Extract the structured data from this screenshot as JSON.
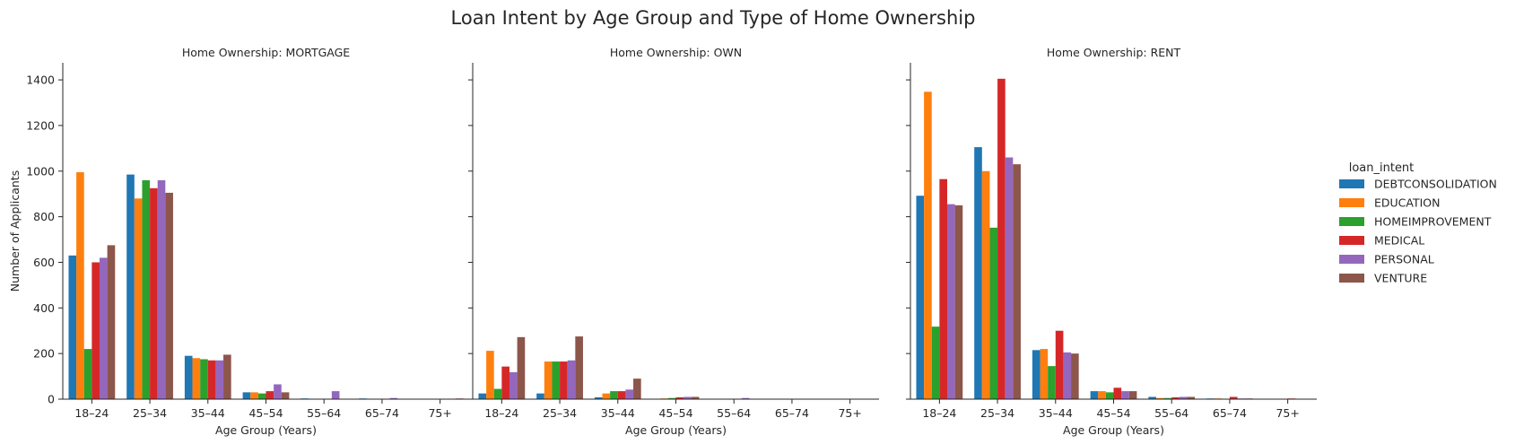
{
  "chart_data": {
    "type": "bar",
    "title": "Loan Intent by Age Group and Type of Home Ownership",
    "xlabel": "Age Group (Years)",
    "ylabel": "Number of Applicants",
    "ylim": [
      0,
      1475
    ],
    "yticks": [
      "0",
      "200",
      "400",
      "600",
      "800",
      "1000",
      "1200",
      "1400"
    ],
    "grid": false,
    "categories": [
      "18–24",
      "25–34",
      "35–44",
      "45–54",
      "55–64",
      "65–74",
      "75+"
    ],
    "legend": {
      "title": "loan_intent",
      "placement": "right",
      "entries": [
        "DEBTCONSOLIDATION",
        "EDUCATION",
        "HOMEIMPROVEMENT",
        "MEDICAL",
        "PERSONAL",
        "VENTURE"
      ],
      "colors": [
        "#1f77b4",
        "#ff7f0e",
        "#2ca02c",
        "#d62728",
        "#9467bd",
        "#8c564b"
      ]
    },
    "panels": [
      {
        "title": "Home Ownership: MORTGAGE",
        "series": [
          {
            "name": "DEBTCONSOLIDATION",
            "values": [
              630,
              985,
              190,
              30,
              3,
              3,
              0
            ]
          },
          {
            "name": "EDUCATION",
            "values": [
              995,
              880,
              180,
              30,
              0,
              0,
              0
            ]
          },
          {
            "name": "HOMEIMPROVEMENT",
            "values": [
              220,
              960,
              175,
              25,
              0,
              0,
              0
            ]
          },
          {
            "name": "MEDICAL",
            "values": [
              600,
              925,
              170,
              35,
              2,
              0,
              0
            ]
          },
          {
            "name": "PERSONAL",
            "values": [
              620,
              960,
              170,
              65,
              35,
              5,
              0
            ]
          },
          {
            "name": "VENTURE",
            "values": [
              675,
              905,
              195,
              30,
              0,
              0,
              3
            ]
          }
        ]
      },
      {
        "title": "Home Ownership: OWN",
        "series": [
          {
            "name": "DEBTCONSOLIDATION",
            "values": [
              25,
              25,
              8,
              0,
              0,
              0,
              0
            ]
          },
          {
            "name": "EDUCATION",
            "values": [
              212,
              165,
              25,
              3,
              0,
              0,
              0
            ]
          },
          {
            "name": "HOMEIMPROVEMENT",
            "values": [
              45,
              165,
              35,
              5,
              0,
              0,
              0
            ]
          },
          {
            "name": "MEDICAL",
            "values": [
              143,
              165,
              35,
              8,
              0,
              0,
              0
            ]
          },
          {
            "name": "PERSONAL",
            "values": [
              118,
              170,
              42,
              10,
              5,
              0,
              0
            ]
          },
          {
            "name": "VENTURE",
            "values": [
              272,
              275,
              90,
              10,
              0,
              0,
              0
            ]
          }
        ]
      },
      {
        "title": "Home Ownership: RENT",
        "series": [
          {
            "name": "DEBTCONSOLIDATION",
            "values": [
              892,
              1105,
              215,
              35,
              10,
              3,
              0
            ]
          },
          {
            "name": "EDUCATION",
            "values": [
              1348,
              1000,
              220,
              35,
              5,
              3,
              0
            ]
          },
          {
            "name": "HOMEIMPROVEMENT",
            "values": [
              318,
              752,
              145,
              30,
              5,
              0,
              0
            ]
          },
          {
            "name": "MEDICAL",
            "values": [
              965,
              1405,
              300,
              50,
              8,
              10,
              3
            ]
          },
          {
            "name": "PERSONAL",
            "values": [
              855,
              1060,
              205,
              35,
              10,
              3,
              0
            ]
          },
          {
            "name": "VENTURE",
            "values": [
              850,
              1030,
              200,
              35,
              10,
              3,
              0
            ]
          }
        ]
      }
    ]
  }
}
